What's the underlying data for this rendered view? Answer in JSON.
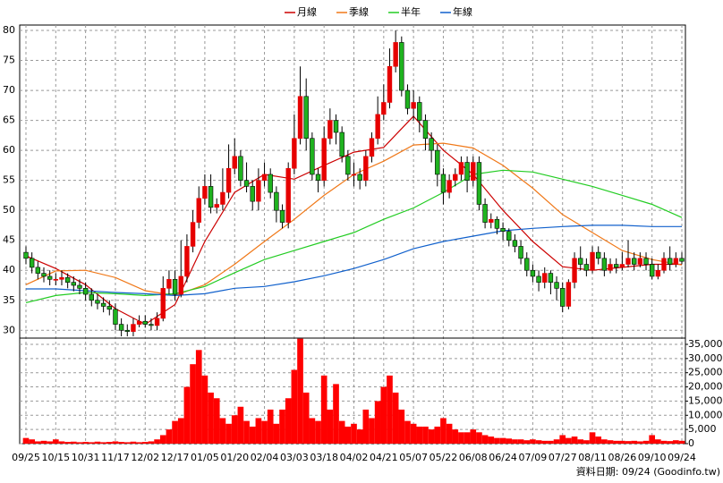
{
  "chart_data": {
    "type": "candlestick",
    "categories": [
      "09/25",
      null,
      null,
      null,
      null,
      "10/15",
      null,
      null,
      null,
      null,
      "10/31",
      null,
      null,
      null,
      null,
      "11/17",
      null,
      null,
      null,
      null,
      "12/02",
      null,
      null,
      null,
      null,
      "12/17",
      null,
      null,
      null,
      null,
      "01/05",
      null,
      null,
      null,
      null,
      "01/20",
      null,
      null,
      null,
      null,
      "02/04",
      null,
      null,
      null,
      null,
      "03/03",
      null,
      null,
      null,
      null,
      "03/18",
      null,
      null,
      null,
      null,
      "04/02",
      null,
      null,
      null,
      null,
      "04/21",
      null,
      null,
      null,
      null,
      "05/07",
      null,
      null,
      null,
      null,
      "05/22",
      null,
      null,
      null,
      null,
      "06/08",
      null,
      null,
      null,
      null,
      "06/24",
      null,
      null,
      null,
      null,
      "07/09",
      null,
      null,
      null,
      null,
      "07/27",
      null,
      null,
      null,
      null,
      "08/11",
      null,
      null,
      null,
      null,
      "08/26",
      null,
      null,
      null,
      null,
      "09/10",
      null,
      null,
      null,
      null,
      "09/24"
    ],
    "open": [
      43,
      42,
      40.5,
      39.5,
      39,
      38.5,
      38.5,
      38.8,
      38,
      37.5,
      37,
      36,
      35,
      34.5,
      34,
      33.5,
      31,
      30,
      29.8,
      31,
      31.5,
      31,
      30.8,
      32,
      37,
      38.5,
      36,
      39,
      44,
      48,
      52,
      54,
      50.5,
      51,
      53,
      57,
      59,
      55,
      54,
      51.5,
      55,
      56,
      53,
      50,
      48,
      57,
      62,
      69,
      62,
      56,
      55,
      62,
      65,
      63,
      59,
      56,
      56,
      55,
      59,
      62,
      66,
      68,
      74,
      78,
      70,
      67,
      68,
      65,
      62,
      60,
      56,
      53,
      55,
      56,
      58,
      55,
      58,
      51,
      48,
      48.5,
      47,
      46.5,
      45,
      44,
      42,
      40,
      39,
      38,
      39.5,
      38,
      37,
      34,
      38,
      42,
      41,
      40,
      43,
      42,
      40,
      41,
      40.5,
      41,
      42,
      41,
      42,
      41,
      39,
      40,
      42,
      41,
      42
    ],
    "high": [
      44,
      43,
      41.5,
      40.5,
      40,
      39.5,
      40,
      39.5,
      39,
      38.5,
      38,
      37,
      36,
      35.5,
      35,
      34.5,
      32,
      31,
      32,
      32.5,
      32.5,
      32,
      33,
      39,
      40,
      40,
      45,
      46,
      50,
      54,
      56,
      56,
      52,
      57,
      61,
      62,
      60,
      58,
      55,
      57,
      58,
      57,
      54,
      51,
      58,
      66,
      74,
      72,
      63,
      57,
      64,
      67,
      66,
      64,
      60,
      58,
      57,
      60,
      63,
      69,
      71,
      77,
      80,
      79,
      71,
      70,
      69,
      66,
      63,
      61,
      57,
      56,
      57,
      59,
      59,
      59,
      59,
      52,
      49.5,
      49,
      48,
      47,
      46,
      45,
      43,
      41,
      40,
      40.5,
      40,
      39,
      38,
      38.5,
      43,
      44,
      42,
      44,
      44,
      43,
      42,
      42,
      43,
      45,
      43,
      43,
      43,
      42,
      41,
      43,
      44,
      43,
      43
    ],
    "low": [
      41,
      39.5,
      38.5,
      38,
      37.5,
      37.5,
      37.5,
      37,
      36.5,
      36,
      35,
      34,
      33.5,
      33,
      32.5,
      30,
      29,
      29,
      29,
      30.5,
      30.5,
      30,
      30,
      31.5,
      36,
      35,
      35.5,
      38,
      43,
      47,
      51,
      49.5,
      49.5,
      50,
      52,
      56,
      54,
      53,
      50,
      50,
      54,
      52,
      48,
      47,
      47,
      56,
      61,
      60,
      55,
      53,
      54,
      61,
      61,
      58,
      55,
      54,
      53.5,
      54,
      58,
      61,
      65,
      67,
      73,
      69,
      66,
      65,
      63,
      60,
      58,
      54,
      51,
      52,
      54,
      55,
      53,
      54,
      50,
      47,
      47,
      46,
      45,
      44,
      43,
      41,
      39,
      38,
      36.5,
      37,
      36,
      35,
      33,
      33.5,
      37,
      40,
      39,
      39.5,
      41,
      39,
      39.5,
      39.5,
      40,
      40.5,
      40,
      40.5,
      40,
      38.5,
      38.5,
      39.5,
      40,
      40.5,
      41
    ],
    "close": [
      42,
      40.5,
      39.5,
      39,
      38.5,
      38.5,
      38.8,
      38,
      37.5,
      37,
      36,
      35,
      34.5,
      34,
      33.5,
      31,
      30,
      29.8,
      31,
      31.5,
      31,
      30.8,
      32,
      37,
      38.5,
      36,
      39,
      44,
      48,
      52,
      54,
      50.5,
      51,
      53,
      57,
      59,
      55,
      54,
      51.5,
      55,
      56,
      53,
      50,
      48,
      57,
      62,
      69,
      62,
      56,
      55,
      62,
      65,
      63,
      59,
      56,
      56,
      55,
      59,
      62,
      66,
      68,
      74,
      78,
      70,
      67,
      68,
      65,
      62,
      60,
      56,
      53,
      55,
      56,
      58,
      55,
      58,
      51,
      48,
      48.5,
      47,
      46.5,
      45,
      44,
      42,
      40,
      39,
      38,
      39.5,
      38,
      37,
      34,
      38,
      42,
      41,
      40,
      43,
      42,
      40,
      41,
      40.5,
      41,
      42,
      41,
      42,
      41,
      39,
      40,
      42,
      41,
      42,
      41.5
    ],
    "up_color": "#e60000",
    "down_color": "#1fb31f",
    "ylim": [
      28.7,
      80.9
    ],
    "yticks": [
      30,
      35,
      40,
      45,
      50,
      55,
      60,
      65,
      70,
      75,
      80
    ],
    "grid": true,
    "legend": "top",
    "moving_averages": [
      {
        "name": "月線",
        "color": "#cc0000",
        "values": [
          42.4,
          40.3,
          37.6,
          33.6,
          31,
          34.3,
          44.8,
          53,
          56,
          55.2,
          57.5,
          59.7,
          60.5,
          65.7,
          60,
          56,
          50,
          44.8,
          40.6,
          40,
          40.5,
          41,
          41
        ]
      },
      {
        "name": "季線",
        "color": "#f07818",
        "values": [
          37.6,
          39.9,
          40,
          38.8,
          36.6,
          35.8,
          37.6,
          41,
          44.8,
          48.5,
          52.5,
          56,
          58.2,
          60.9,
          61.2,
          60.4,
          57.5,
          53.7,
          49.3,
          46.3,
          43.3,
          41.8,
          40.9
        ]
      },
      {
        "name": "半年",
        "color": "#22cc22",
        "values": [
          34.6,
          35.8,
          36.3,
          36.1,
          35.8,
          36.1,
          37.3,
          39.6,
          41.8,
          43.3,
          44.8,
          46.3,
          48.5,
          50.4,
          53,
          56,
          56.7,
          56.4,
          55.2,
          54,
          52.5,
          51,
          48.8
        ]
      },
      {
        "name": "年線",
        "color": "#1060cc",
        "values": [
          36.9,
          36.9,
          36.6,
          36.3,
          36.1,
          35.8,
          36.1,
          37,
          37.3,
          38.1,
          39.1,
          40.3,
          41.8,
          43.6,
          44.8,
          45.7,
          46.6,
          47,
          47.3,
          47.5,
          47.5,
          47.3,
          47.3
        ]
      }
    ],
    "volume": {
      "color": "#ff0000",
      "values": [
        2000,
        1500,
        800,
        1000,
        800,
        1500,
        800,
        600,
        700,
        500,
        600,
        500,
        700,
        500,
        600,
        800,
        600,
        500,
        700,
        500,
        600,
        800,
        1500,
        3000,
        5000,
        8000,
        9000,
        20000,
        28000,
        33000,
        24000,
        18000,
        16000,
        9000,
        7000,
        10000,
        13000,
        8000,
        6000,
        9000,
        8000,
        12000,
        7000,
        12000,
        16000,
        26000,
        37000,
        18000,
        9000,
        8000,
        24000,
        12000,
        21000,
        8000,
        6000,
        7000,
        5000,
        12000,
        9000,
        15000,
        20000,
        24000,
        18000,
        12000,
        8000,
        7000,
        6000,
        6000,
        5000,
        6000,
        9000,
        7000,
        5000,
        4000,
        4000,
        5000,
        4000,
        3000,
        2500,
        2000,
        2000,
        1800,
        1500,
        1500,
        1200,
        1500,
        1200,
        1000,
        1000,
        1500,
        3000,
        2000,
        2500,
        1500,
        1200,
        4000,
        2500,
        1500,
        1200,
        1000,
        1000,
        900,
        1000,
        800,
        1000,
        3000,
        1500,
        1000,
        900,
        1200,
        1000
      ],
      "y2lim": [
        0,
        37200
      ],
      "y2ticks": [
        0,
        {
          "value": 5000,
          "label": "5,000"
        },
        {
          "value": 10000,
          "label": "10,000"
        },
        {
          "value": 15000,
          "label": "15,000"
        },
        {
          "value": 20000,
          "label": "20,000"
        },
        {
          "value": 25000,
          "label": "25,000"
        },
        {
          "value": 30000,
          "label": "30,000"
        },
        {
          "value": 35000,
          "label": "35,000"
        }
      ]
    }
  },
  "footer": "資料日期: 09/24 (Goodinfo.tw)"
}
